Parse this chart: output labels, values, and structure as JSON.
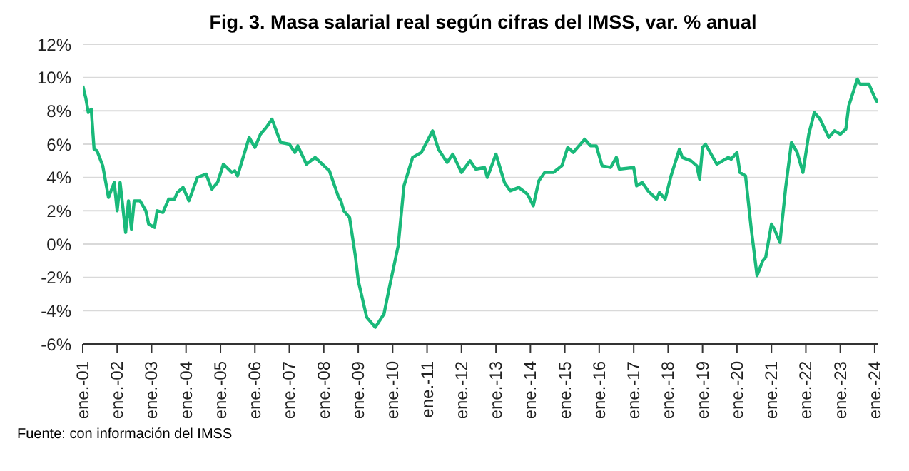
{
  "chart_data": {
    "type": "line",
    "title": "Fig. 3. Masa salarial real según cifras del IMSS, var. % anual",
    "annotations": [
      "Fuente: con información del IMSS"
    ],
    "x": [
      "2001-01",
      "2001-02",
      "2001-03",
      "2001-04",
      "2001-05",
      "2001-06",
      "2001-08",
      "2001-10",
      "2001-12",
      "2002-01",
      "2002-02",
      "2002-04",
      "2002-05",
      "2002-06",
      "2002-07",
      "2002-09",
      "2002-11",
      "2002-12",
      "2003-02",
      "2003-03",
      "2003-05",
      "2003-07",
      "2003-09",
      "2003-10",
      "2003-12",
      "2004-02",
      "2004-05",
      "2004-08",
      "2004-10",
      "2004-12",
      "2005-02",
      "2005-05",
      "2005-06",
      "2005-07",
      "2005-11",
      "2006-01",
      "2006-03",
      "2006-05",
      "2006-07",
      "2006-10",
      "2007-01",
      "2007-03",
      "2007-04",
      "2007-07",
      "2007-10",
      "2008-03",
      "2008-06",
      "2008-07",
      "2008-08",
      "2008-10",
      "2008-12",
      "2009-01",
      "2009-04",
      "2009-07",
      "2009-10",
      "2009-12",
      "2010-03",
      "2010-05",
      "2010-08",
      "2010-11",
      "2011-03",
      "2011-05",
      "2011-08",
      "2011-10",
      "2012-01",
      "2012-04",
      "2012-06",
      "2012-09",
      "2012-10",
      "2013-01",
      "2013-04",
      "2013-06",
      "2013-09",
      "2013-12",
      "2014-02",
      "2014-04",
      "2014-06",
      "2014-09",
      "2014-12",
      "2015-02",
      "2015-04",
      "2015-08",
      "2015-10",
      "2015-12",
      "2016-02",
      "2016-05",
      "2016-07",
      "2016-08",
      "2017-01",
      "2017-02",
      "2017-04",
      "2017-06",
      "2017-09",
      "2017-10",
      "2017-12",
      "2018-02",
      "2018-05",
      "2018-06",
      "2018-09",
      "2018-11",
      "2018-12",
      "2019-01",
      "2019-02",
      "2019-06",
      "2019-08",
      "2019-10",
      "2019-11",
      "2020-01",
      "2020-02",
      "2020-04",
      "2020-06",
      "2020-08",
      "2020-10",
      "2020-11",
      "2021-01",
      "2021-02",
      "2021-04",
      "2021-06",
      "2021-08",
      "2021-10",
      "2021-12",
      "2022-02",
      "2022-04",
      "2022-06",
      "2022-09",
      "2022-11",
      "2023-01",
      "2023-03",
      "2023-04",
      "2023-07",
      "2023-08",
      "2023-11",
      "2024-01",
      "2024-02"
    ],
    "series": [
      {
        "color": "#19b97a",
        "values": [
          9.5,
          8.8,
          7.9,
          8.1,
          5.7,
          5.6,
          4.7,
          2.8,
          3.7,
          2.0,
          3.7,
          0.7,
          2.6,
          0.9,
          2.6,
          2.6,
          2.0,
          1.2,
          1.0,
          2.0,
          1.9,
          2.7,
          2.7,
          3.1,
          3.4,
          2.6,
          4.0,
          4.2,
          3.3,
          3.7,
          4.8,
          4.3,
          4.4,
          4.1,
          6.4,
          5.8,
          6.6,
          7.0,
          7.5,
          6.1,
          6.0,
          5.5,
          5.9,
          4.8,
          5.2,
          4.4,
          2.9,
          2.6,
          2.0,
          1.6,
          -0.7,
          -2.2,
          -4.4,
          -5.0,
          -4.2,
          -2.5,
          -0.1,
          3.5,
          5.2,
          5.5,
          6.8,
          5.7,
          4.9,
          5.4,
          4.3,
          5.0,
          4.5,
          4.6,
          4.0,
          5.4,
          3.7,
          3.2,
          3.4,
          3.0,
          2.3,
          3.8,
          4.3,
          4.3,
          4.7,
          5.8,
          5.5,
          6.3,
          5.9,
          5.9,
          4.7,
          4.6,
          5.2,
          4.5,
          4.6,
          3.5,
          3.7,
          3.2,
          2.7,
          3.1,
          2.7,
          4.1,
          5.7,
          5.2,
          5.0,
          4.7,
          3.9,
          5.8,
          6.0,
          4.8,
          5.0,
          5.2,
          5.1,
          5.5,
          4.3,
          4.1,
          0.9,
          -1.9,
          -1.0,
          -0.8,
          1.2,
          0.9,
          0.1,
          3.4,
          6.1,
          5.5,
          4.3,
          6.6,
          7.9,
          7.5,
          6.4,
          6.8,
          6.6,
          6.9,
          8.3,
          9.9,
          9.6,
          9.6,
          8.8,
          8.5
        ]
      }
    ],
    "xlim": [
      "2001-01",
      "2024-02"
    ],
    "xticks": [
      {
        "value": "2001-01",
        "label": "ene.-01"
      },
      {
        "value": "2002-01",
        "label": "ene.-02"
      },
      {
        "value": "2003-01",
        "label": "ene.-03"
      },
      {
        "value": "2004-01",
        "label": "ene.-04"
      },
      {
        "value": "2005-01",
        "label": "ene.-05"
      },
      {
        "value": "2006-01",
        "label": "ene.-06"
      },
      {
        "value": "2007-01",
        "label": "ene.-07"
      },
      {
        "value": "2008-01",
        "label": "ene.-08"
      },
      {
        "value": "2009-01",
        "label": "ene.-09"
      },
      {
        "value": "2010-01",
        "label": "ene.-10"
      },
      {
        "value": "2011-01",
        "label": "ene.-11"
      },
      {
        "value": "2012-01",
        "label": "ene.-12"
      },
      {
        "value": "2013-01",
        "label": "ene.-13"
      },
      {
        "value": "2014-01",
        "label": "ene.-14"
      },
      {
        "value": "2015-01",
        "label": "ene.-15"
      },
      {
        "value": "2016-01",
        "label": "ene.-16"
      },
      {
        "value": "2017-01",
        "label": "ene.-17"
      },
      {
        "value": "2018-01",
        "label": "ene.-18"
      },
      {
        "value": "2019-01",
        "label": "ene.-19"
      },
      {
        "value": "2020-01",
        "label": "ene.-20"
      },
      {
        "value": "2021-01",
        "label": "ene.-21"
      },
      {
        "value": "2022-01",
        "label": "ene.-22"
      },
      {
        "value": "2023-01",
        "label": "ene.-23"
      },
      {
        "value": "2024-01",
        "label": "ene.-24"
      }
    ],
    "ylim": [
      -6,
      12
    ],
    "yticks": [
      {
        "value": -6,
        "label": "-6%"
      },
      {
        "value": -4,
        "label": "-4%"
      },
      {
        "value": -2,
        "label": "-2%"
      },
      {
        "value": 0,
        "label": "0%"
      },
      {
        "value": 2,
        "label": "2%"
      },
      {
        "value": 4,
        "label": "4%"
      },
      {
        "value": 6,
        "label": "6%"
      },
      {
        "value": 8,
        "label": "8%"
      },
      {
        "value": 10,
        "label": "10%"
      },
      {
        "value": 12,
        "label": "12%"
      }
    ],
    "grid": "y",
    "marker": "none",
    "line_style": "solid"
  }
}
